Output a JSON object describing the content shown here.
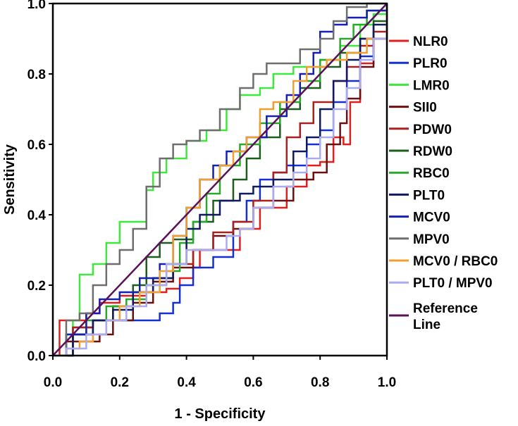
{
  "chart_data": {
    "type": "line",
    "title": "",
    "xlabel": "1 - Specificity",
    "ylabel": "Sensitivity",
    "xlim": [
      0,
      1
    ],
    "ylim": [
      0,
      1
    ],
    "xticks": [
      "0.0",
      "0.2",
      "0.4",
      "0.6",
      "0.8",
      "1.0"
    ],
    "yticks": [
      "0.0",
      "0.2",
      "0.4",
      "0.6",
      "0.8",
      "1.0"
    ],
    "grid": false,
    "legend_position": "right",
    "series": [
      {
        "name": "NLR0",
        "color": "#e02020",
        "points": [
          [
            0,
            0
          ],
          [
            0.02,
            0.1
          ],
          [
            0.06,
            0.1
          ],
          [
            0.1,
            0.12
          ],
          [
            0.14,
            0.15
          ],
          [
            0.2,
            0.17
          ],
          [
            0.28,
            0.2
          ],
          [
            0.3,
            0.18
          ],
          [
            0.34,
            0.19
          ],
          [
            0.38,
            0.22
          ],
          [
            0.42,
            0.25
          ],
          [
            0.44,
            0.3
          ],
          [
            0.5,
            0.3
          ],
          [
            0.56,
            0.36
          ],
          [
            0.62,
            0.42
          ],
          [
            0.7,
            0.48
          ],
          [
            0.76,
            0.54
          ],
          [
            0.8,
            0.55
          ],
          [
            0.84,
            0.62
          ],
          [
            0.87,
            0.6
          ],
          [
            0.89,
            0.72
          ],
          [
            0.92,
            0.83
          ],
          [
            0.96,
            0.9
          ],
          [
            1,
            1
          ]
        ]
      },
      {
        "name": "PLR0",
        "color": "#1530d0",
        "points": [
          [
            0,
            0
          ],
          [
            0.06,
            0.08
          ],
          [
            0.12,
            0.1
          ],
          [
            0.2,
            0.1
          ],
          [
            0.26,
            0.1
          ],
          [
            0.32,
            0.12
          ],
          [
            0.36,
            0.15
          ],
          [
            0.38,
            0.2
          ],
          [
            0.42,
            0.25
          ],
          [
            0.48,
            0.28
          ],
          [
            0.54,
            0.38
          ],
          [
            0.58,
            0.44
          ],
          [
            0.62,
            0.5
          ],
          [
            0.66,
            0.52
          ],
          [
            0.7,
            0.54
          ],
          [
            0.76,
            0.6
          ],
          [
            0.8,
            0.64
          ],
          [
            0.84,
            0.72
          ],
          [
            0.88,
            0.78
          ],
          [
            0.92,
            0.85
          ],
          [
            0.96,
            0.9
          ],
          [
            1,
            1
          ]
        ]
      },
      {
        "name": "LMR0",
        "color": "#3ee83e",
        "points": [
          [
            0,
            0
          ],
          [
            0.06,
            0.1
          ],
          [
            0.08,
            0.23
          ],
          [
            0.12,
            0.26
          ],
          [
            0.16,
            0.32
          ],
          [
            0.2,
            0.38
          ],
          [
            0.24,
            0.38
          ],
          [
            0.28,
            0.47
          ],
          [
            0.3,
            0.52
          ],
          [
            0.34,
            0.56
          ],
          [
            0.4,
            0.61
          ],
          [
            0.46,
            0.64
          ],
          [
            0.52,
            0.7
          ],
          [
            0.56,
            0.74
          ],
          [
            0.62,
            0.76
          ],
          [
            0.66,
            0.8
          ],
          [
            0.72,
            0.82
          ],
          [
            0.8,
            0.84
          ],
          [
            0.86,
            0.88
          ],
          [
            0.92,
            0.94
          ],
          [
            0.96,
            0.97
          ],
          [
            1,
            1
          ]
        ]
      },
      {
        "name": "SII0",
        "color": "#6b1010",
        "points": [
          [
            0,
            0
          ],
          [
            0.04,
            0.04
          ],
          [
            0.1,
            0.04
          ],
          [
            0.14,
            0.06
          ],
          [
            0.18,
            0.1
          ],
          [
            0.24,
            0.15
          ],
          [
            0.3,
            0.21
          ],
          [
            0.36,
            0.25
          ],
          [
            0.42,
            0.3
          ],
          [
            0.48,
            0.34
          ],
          [
            0.54,
            0.36
          ],
          [
            0.6,
            0.42
          ],
          [
            0.66,
            0.44
          ],
          [
            0.72,
            0.5
          ],
          [
            0.78,
            0.52
          ],
          [
            0.82,
            0.6
          ],
          [
            0.86,
            0.66
          ],
          [
            0.88,
            0.73
          ],
          [
            0.92,
            0.82
          ],
          [
            0.96,
            0.9
          ],
          [
            1,
            1
          ]
        ]
      },
      {
        "name": "PDW0",
        "color": "#a82020",
        "points": [
          [
            0,
            0
          ],
          [
            0.06,
            0.08
          ],
          [
            0.12,
            0.1
          ],
          [
            0.18,
            0.14
          ],
          [
            0.24,
            0.18
          ],
          [
            0.3,
            0.22
          ],
          [
            0.36,
            0.26
          ],
          [
            0.42,
            0.3
          ],
          [
            0.48,
            0.35
          ],
          [
            0.54,
            0.38
          ],
          [
            0.6,
            0.44
          ],
          [
            0.66,
            0.52
          ],
          [
            0.7,
            0.62
          ],
          [
            0.74,
            0.66
          ],
          [
            0.78,
            0.72
          ],
          [
            0.84,
            0.78
          ],
          [
            0.88,
            0.82
          ],
          [
            0.92,
            0.88
          ],
          [
            0.96,
            0.92
          ],
          [
            1,
            1
          ]
        ]
      },
      {
        "name": "RDW0",
        "color": "#1c5e1c",
        "points": [
          [
            0,
            0
          ],
          [
            0.06,
            0.06
          ],
          [
            0.12,
            0.1
          ],
          [
            0.18,
            0.14
          ],
          [
            0.24,
            0.2
          ],
          [
            0.28,
            0.28
          ],
          [
            0.32,
            0.32
          ],
          [
            0.36,
            0.33
          ],
          [
            0.42,
            0.38
          ],
          [
            0.48,
            0.44
          ],
          [
            0.54,
            0.5
          ],
          [
            0.58,
            0.56
          ],
          [
            0.62,
            0.62
          ],
          [
            0.68,
            0.7
          ],
          [
            0.74,
            0.76
          ],
          [
            0.8,
            0.82
          ],
          [
            0.86,
            0.86
          ],
          [
            0.92,
            0.9
          ],
          [
            0.96,
            0.95
          ],
          [
            1,
            1
          ]
        ]
      },
      {
        "name": "RBC0",
        "color": "#2aa82a",
        "points": [
          [
            0,
            0
          ],
          [
            0.04,
            0.06
          ],
          [
            0.1,
            0.1
          ],
          [
            0.16,
            0.14
          ],
          [
            0.22,
            0.16
          ],
          [
            0.28,
            0.2
          ],
          [
            0.34,
            0.24
          ],
          [
            0.38,
            0.32
          ],
          [
            0.42,
            0.38
          ],
          [
            0.46,
            0.46
          ],
          [
            0.5,
            0.54
          ],
          [
            0.56,
            0.6
          ],
          [
            0.62,
            0.66
          ],
          [
            0.68,
            0.72
          ],
          [
            0.74,
            0.78
          ],
          [
            0.8,
            0.84
          ],
          [
            0.86,
            0.9
          ],
          [
            0.9,
            0.94
          ],
          [
            0.94,
            0.98
          ],
          [
            1,
            1
          ]
        ]
      },
      {
        "name": "PLT0",
        "color": "#101a60",
        "points": [
          [
            0,
            0
          ],
          [
            0.06,
            0.06
          ],
          [
            0.12,
            0.1
          ],
          [
            0.18,
            0.13
          ],
          [
            0.24,
            0.18
          ],
          [
            0.3,
            0.22
          ],
          [
            0.36,
            0.26
          ],
          [
            0.4,
            0.36
          ],
          [
            0.44,
            0.4
          ],
          [
            0.5,
            0.44
          ],
          [
            0.56,
            0.46
          ],
          [
            0.6,
            0.48
          ],
          [
            0.66,
            0.5
          ],
          [
            0.72,
            0.58
          ],
          [
            0.76,
            0.62
          ],
          [
            0.8,
            0.7
          ],
          [
            0.84,
            0.78
          ],
          [
            0.88,
            0.84
          ],
          [
            0.92,
            0.9
          ],
          [
            0.96,
            0.94
          ],
          [
            1,
            1
          ]
        ]
      },
      {
        "name": "MCV0",
        "color": "#1420b0",
        "points": [
          [
            0,
            0
          ],
          [
            0.04,
            0.06
          ],
          [
            0.1,
            0.12
          ],
          [
            0.14,
            0.16
          ],
          [
            0.2,
            0.18
          ],
          [
            0.26,
            0.22
          ],
          [
            0.32,
            0.26
          ],
          [
            0.36,
            0.34
          ],
          [
            0.4,
            0.42
          ],
          [
            0.44,
            0.5
          ],
          [
            0.48,
            0.54
          ],
          [
            0.52,
            0.58
          ],
          [
            0.58,
            0.62
          ],
          [
            0.64,
            0.68
          ],
          [
            0.7,
            0.74
          ],
          [
            0.74,
            0.8
          ],
          [
            0.78,
            0.86
          ],
          [
            0.8,
            0.92
          ],
          [
            0.84,
            0.94
          ],
          [
            0.88,
            0.96
          ],
          [
            0.94,
            0.98
          ],
          [
            1,
            1
          ]
        ]
      },
      {
        "name": "MPV0",
        "color": "#6e6e6e",
        "points": [
          [
            0,
            0
          ],
          [
            0.04,
            0.1
          ],
          [
            0.08,
            0.12
          ],
          [
            0.12,
            0.2
          ],
          [
            0.16,
            0.26
          ],
          [
            0.2,
            0.3
          ],
          [
            0.24,
            0.36
          ],
          [
            0.28,
            0.48
          ],
          [
            0.32,
            0.56
          ],
          [
            0.36,
            0.6
          ],
          [
            0.4,
            0.61
          ],
          [
            0.44,
            0.64
          ],
          [
            0.5,
            0.7
          ],
          [
            0.56,
            0.76
          ],
          [
            0.6,
            0.8
          ],
          [
            0.64,
            0.83
          ],
          [
            0.7,
            0.83
          ],
          [
            0.74,
            0.87
          ],
          [
            0.8,
            0.9
          ],
          [
            0.84,
            0.95
          ],
          [
            0.88,
            0.99
          ],
          [
            0.94,
            1
          ],
          [
            1,
            1
          ]
        ]
      },
      {
        "name": "MCV0 / RBC0",
        "color": "#f0a030",
        "points": [
          [
            0,
            0
          ],
          [
            0.04,
            0.02
          ],
          [
            0.08,
            0.04
          ],
          [
            0.12,
            0.06
          ],
          [
            0.16,
            0.1
          ],
          [
            0.2,
            0.14
          ],
          [
            0.26,
            0.18
          ],
          [
            0.32,
            0.24
          ],
          [
            0.36,
            0.34
          ],
          [
            0.4,
            0.42
          ],
          [
            0.44,
            0.5
          ],
          [
            0.5,
            0.54
          ],
          [
            0.54,
            0.58
          ],
          [
            0.58,
            0.62
          ],
          [
            0.62,
            0.7
          ],
          [
            0.66,
            0.72
          ],
          [
            0.72,
            0.78
          ],
          [
            0.76,
            0.82
          ],
          [
            0.82,
            0.84
          ],
          [
            0.88,
            0.86
          ],
          [
            0.94,
            0.9
          ],
          [
            1,
            1
          ]
        ]
      },
      {
        "name": "PLT0 / MPV0",
        "color": "#aaaaee",
        "points": [
          [
            0,
            0
          ],
          [
            0.04,
            0.02
          ],
          [
            0.1,
            0.06
          ],
          [
            0.16,
            0.1
          ],
          [
            0.22,
            0.14
          ],
          [
            0.28,
            0.2
          ],
          [
            0.34,
            0.26
          ],
          [
            0.4,
            0.3
          ],
          [
            0.46,
            0.3
          ],
          [
            0.52,
            0.34
          ],
          [
            0.56,
            0.36
          ],
          [
            0.6,
            0.42
          ],
          [
            0.66,
            0.48
          ],
          [
            0.72,
            0.52
          ],
          [
            0.76,
            0.56
          ],
          [
            0.8,
            0.62
          ],
          [
            0.84,
            0.7
          ],
          [
            0.88,
            0.76
          ],
          [
            0.92,
            0.84
          ],
          [
            0.96,
            0.9
          ],
          [
            1,
            1
          ]
        ]
      },
      {
        "name": "Reference Line",
        "color": "#5a105a",
        "points": [
          [
            0,
            0
          ],
          [
            1,
            1
          ]
        ]
      }
    ]
  },
  "legend": {
    "items": [
      {
        "label": "NLR0",
        "color": "#e02020"
      },
      {
        "label": "PLR0",
        "color": "#1530d0"
      },
      {
        "label": "LMR0",
        "color": "#3ee83e"
      },
      {
        "label": "SII0",
        "color": "#6b1010"
      },
      {
        "label": "PDW0",
        "color": "#a82020"
      },
      {
        "label": "RDW0",
        "color": "#1c5e1c"
      },
      {
        "label": "RBC0",
        "color": "#2aa82a"
      },
      {
        "label": "PLT0",
        "color": "#101a60"
      },
      {
        "label": "MCV0",
        "color": "#1420b0"
      },
      {
        "label": "MPV0",
        "color": "#6e6e6e"
      },
      {
        "label": "MCV0 / RBC0",
        "color": "#f0a030"
      },
      {
        "label": "PLT0 / MPV0",
        "color": "#aaaaee"
      }
    ],
    "reference": {
      "label_line1": "Reference",
      "label_line2": "Line",
      "color": "#5a105a"
    }
  }
}
